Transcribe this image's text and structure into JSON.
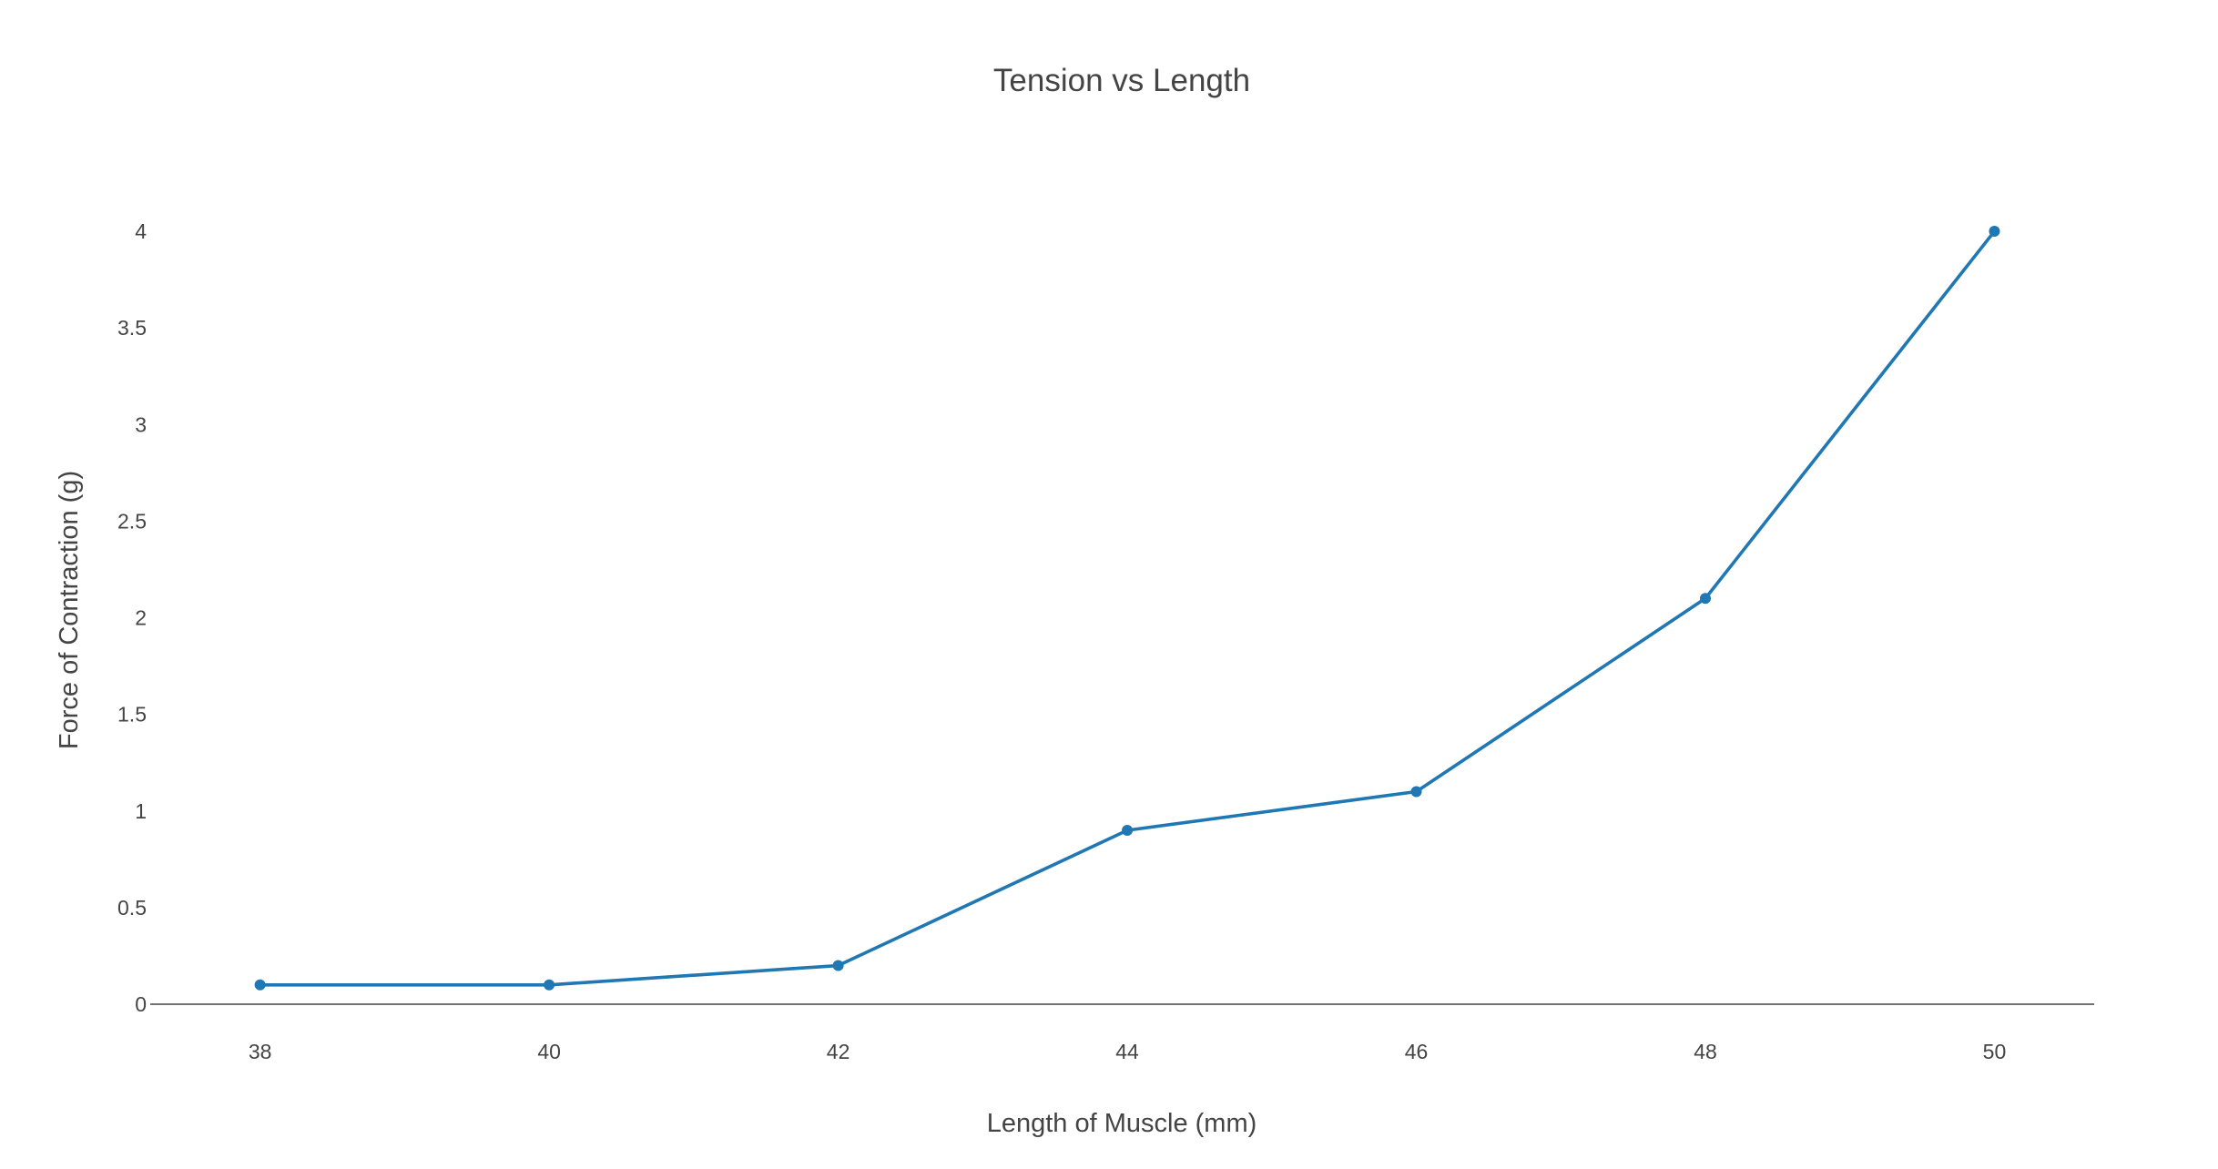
{
  "chart_data": {
    "type": "line",
    "title": "Tension vs Length",
    "xlabel": "Length of Muscle (mm)",
    "ylabel": "Force of Contraction (g)",
    "x": [
      38,
      40,
      42,
      44,
      46,
      48,
      50
    ],
    "series": [
      {
        "values": [
          0.1,
          0.1,
          0.2,
          0.9,
          1.1,
          2.1,
          4.0
        ]
      }
    ],
    "xticks": [
      "38",
      "40",
      "42",
      "44",
      "46",
      "48",
      "50"
    ],
    "yticks": [
      "0",
      "0.5",
      "1",
      "1.5",
      "2",
      "2.5",
      "3",
      "3.5",
      "4"
    ],
    "xlim": [
      37.24,
      50.69
    ],
    "ylim": [
      0,
      4
    ],
    "grid": false,
    "legend": "none",
    "colors": {
      "line": "#1f77b4",
      "text": "#444444",
      "axis": "#444444"
    }
  }
}
